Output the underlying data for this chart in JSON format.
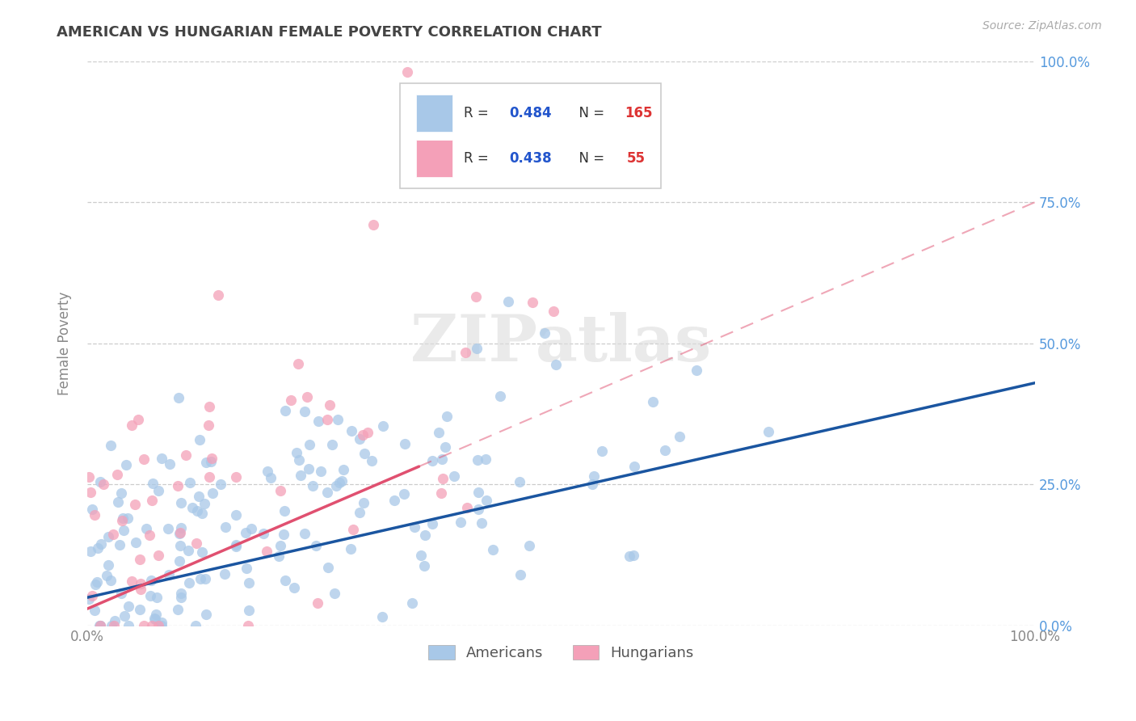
{
  "title": "AMERICAN VS HUNGARIAN FEMALE POVERTY CORRELATION CHART",
  "source": "Source: ZipAtlas.com",
  "ylabel": "Female Poverty",
  "xlim": [
    0,
    1
  ],
  "ylim": [
    0,
    1
  ],
  "ytick_positions": [
    0.0,
    0.25,
    0.5,
    0.75,
    1.0
  ],
  "ytick_labels": [
    "0.0%",
    "25.0%",
    "50.0%",
    "75.0%",
    "100.0%"
  ],
  "xtick_positions": [
    0.0,
    0.25,
    0.5,
    0.75,
    1.0
  ],
  "xtick_labels": [
    "0.0%",
    "",
    "",
    "",
    "100.0%"
  ],
  "american_color": "#a8c8e8",
  "hungarian_color": "#f4a0b8",
  "american_line_color": "#1a55a0",
  "hungarian_line_color": "#e05070",
  "background_color": "#ffffff",
  "grid_color": "#cccccc",
  "american_r": 0.484,
  "american_n": 165,
  "hungarian_r": 0.438,
  "hungarian_n": 55,
  "watermark_text": "ZIPatlas",
  "legend_r_color": "#2255cc",
  "legend_n_color": "#dd3333"
}
